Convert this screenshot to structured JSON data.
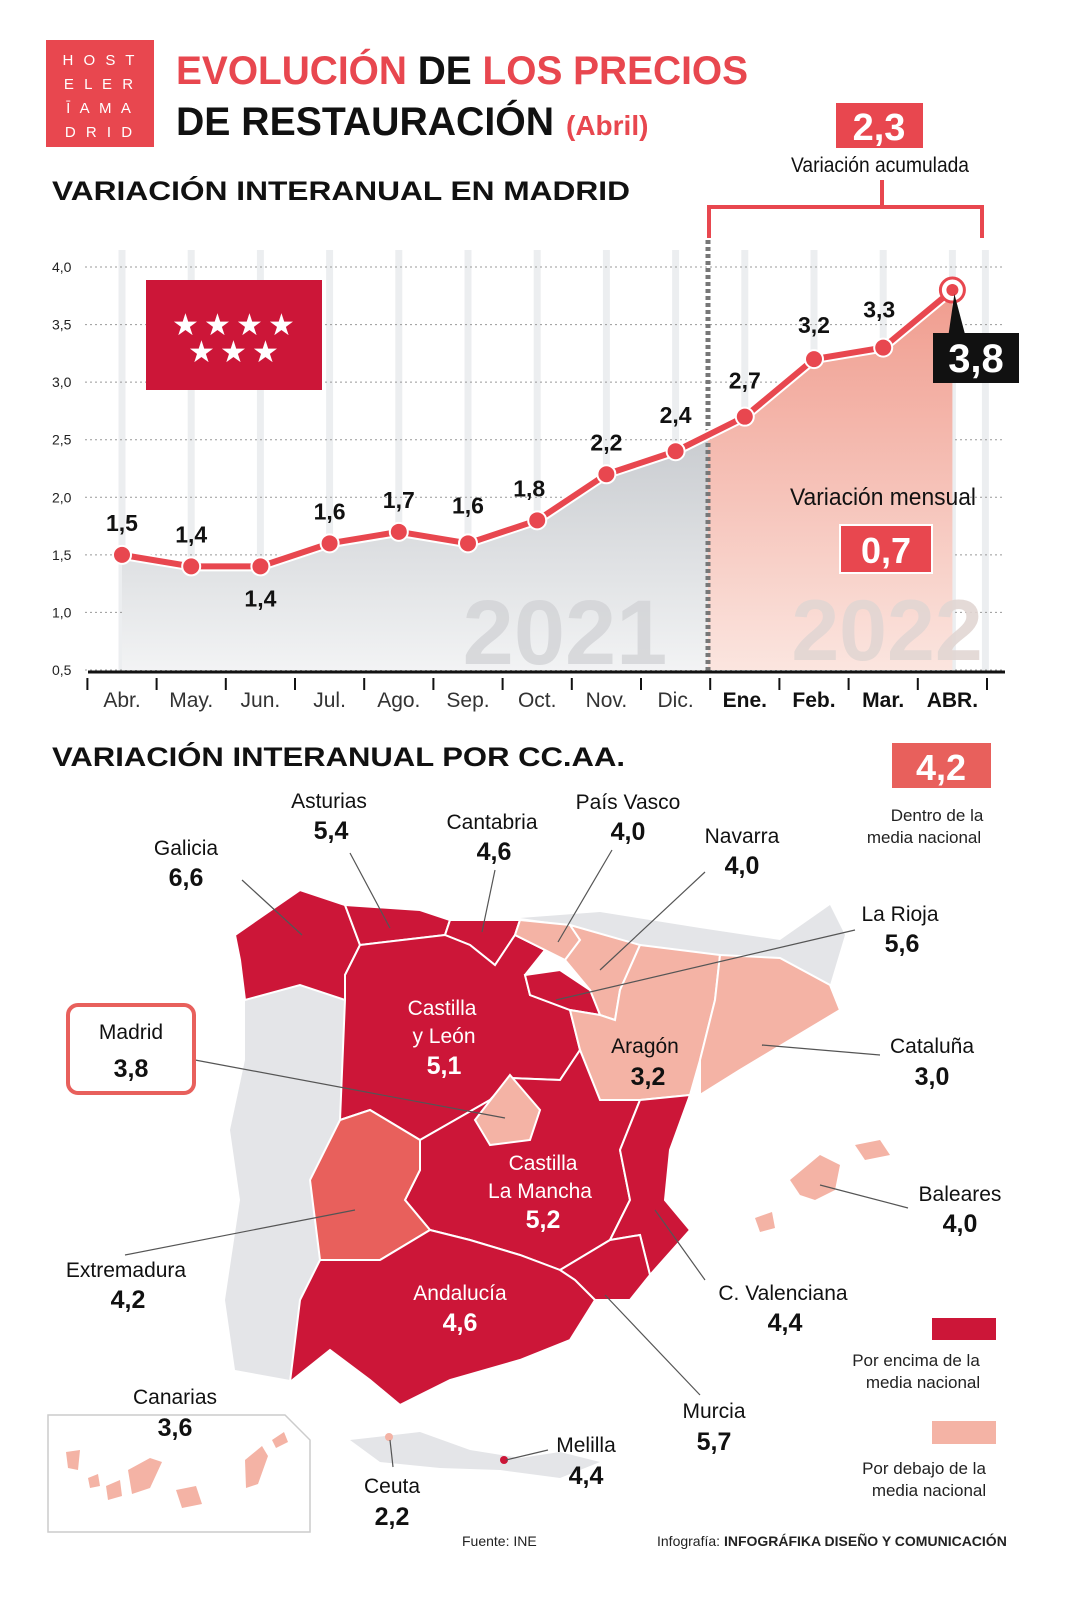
{
  "logo": {
    "lines": [
      "H O S T",
      "E L E R",
      "Ī A M A",
      "D R I D"
    ]
  },
  "title": {
    "part1": "EVOLUCIÓN",
    "part2": "DE",
    "part3": "LOS PRECIOS",
    "line2": "DE RESTAURACIÓN",
    "month": "(Abril)"
  },
  "colors": {
    "accent": "#e8474f",
    "above": "#cc1638",
    "below": "#f4b3a5",
    "within": "#e8605c",
    "neutral": "#e4e5e8"
  },
  "chart_data": {
    "type": "line",
    "title": "VARIACIÓN INTERANUAL EN MADRID",
    "categories": [
      "Abr.",
      "May.",
      "Jun.",
      "Jul.",
      "Ago.",
      "Sep.",
      "Oct.",
      "Nov.",
      "Dic.",
      "Ene.",
      "Feb.",
      "Mar.",
      "ABR."
    ],
    "values": [
      1.5,
      1.4,
      1.4,
      1.6,
      1.7,
      1.6,
      1.8,
      2.2,
      2.4,
      2.7,
      3.2,
      3.3,
      3.8
    ],
    "value_labels": [
      "1,5",
      "1,4",
      "1,4",
      "1,6",
      "1,7",
      "1,6",
      "1,8",
      "2,2",
      "2,4",
      "2,7",
      "3,2",
      "3,3",
      "3,8"
    ],
    "yticks": [
      "0,5",
      "1,0",
      "1,5",
      "2,0",
      "2,5",
      "3,0",
      "3,5",
      "4,0"
    ],
    "ylim": [
      0.5,
      4.0
    ],
    "grid": true,
    "years": [
      "2021",
      "2022"
    ],
    "accumulated": {
      "value": "2,3",
      "label": "Variación acumulada"
    },
    "monthly": {
      "value": "0,7",
      "label": "Variación mensual"
    },
    "flag_icon": "madrid-flag-seven-stars"
  },
  "map": {
    "title": "VARIACIÓN INTERANUAL POR CC.AA.",
    "national": {
      "value": "4,2",
      "label": [
        "Dentro de la",
        "media nacional"
      ]
    },
    "legend": {
      "above": [
        "Por encima de la",
        "media nacional"
      ],
      "below": [
        "Por debajo de la",
        "media nacional"
      ]
    },
    "regions": [
      {
        "name": [
          "Galicia"
        ],
        "value": "6,6",
        "status": "above"
      },
      {
        "name": [
          "Asturias"
        ],
        "value": "5,4",
        "status": "above"
      },
      {
        "name": [
          "Cantabria"
        ],
        "value": "4,6",
        "status": "above"
      },
      {
        "name": [
          "País Vasco"
        ],
        "value": "4,0",
        "status": "below"
      },
      {
        "name": [
          "Navarra"
        ],
        "value": "4,0",
        "status": "below"
      },
      {
        "name": [
          "La Rioja"
        ],
        "value": "5,6",
        "status": "above"
      },
      {
        "name": [
          "Cataluña"
        ],
        "value": "3,0",
        "status": "below"
      },
      {
        "name": [
          "Aragón"
        ],
        "value": "3,2",
        "status": "below"
      },
      {
        "name": [
          "Castilla",
          "y León"
        ],
        "value": "5,1",
        "status": "above"
      },
      {
        "name": [
          "Madrid"
        ],
        "value": "3,8",
        "status": "below"
      },
      {
        "name": [
          "Castilla",
          "La Mancha"
        ],
        "value": "5,2",
        "status": "above"
      },
      {
        "name": [
          "Extremadura"
        ],
        "value": "4,2",
        "status": "within"
      },
      {
        "name": [
          "Andalucía"
        ],
        "value": "4,6",
        "status": "above"
      },
      {
        "name": [
          "C. Valenciana"
        ],
        "value": "4,4",
        "status": "above"
      },
      {
        "name": [
          "Murcia"
        ],
        "value": "5,7",
        "status": "above"
      },
      {
        "name": [
          "Baleares"
        ],
        "value": "4,0",
        "status": "below"
      },
      {
        "name": [
          "Canarias"
        ],
        "value": "3,6",
        "status": "below"
      },
      {
        "name": [
          "Ceuta"
        ],
        "value": "2,2",
        "status": "below"
      },
      {
        "name": [
          "Melilla"
        ],
        "value": "4,4",
        "status": "above"
      }
    ]
  },
  "footer": {
    "source": "Fuente: INE",
    "credit_label": "Infografía:",
    "credit_name": "INFOGRÁFIKA DISEÑO Y COMUNICACIÓN"
  }
}
